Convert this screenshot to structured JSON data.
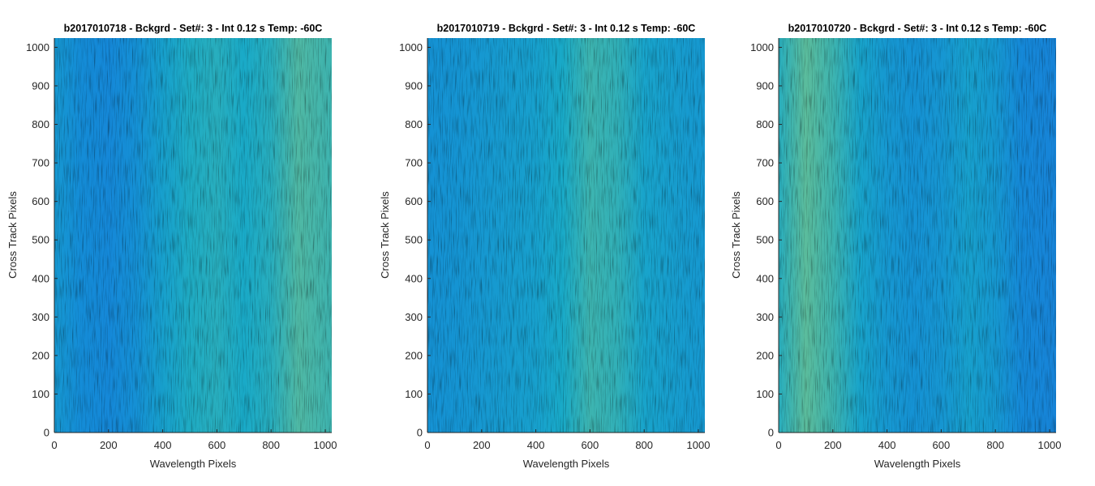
{
  "chart_data": [
    {
      "type": "heatmap",
      "title": "b2017010718 - Bckgrd - Set#: 3 - Int 0.12 s Temp: -60C",
      "xlabel": "Wavelength Pixels",
      "ylabel": "Cross Track Pixels",
      "xlim": [
        0,
        1024
      ],
      "ylim": [
        0,
        1024
      ],
      "xticks": [
        0,
        200,
        400,
        600,
        800,
        1000
      ],
      "yticks": [
        0,
        100,
        200,
        300,
        400,
        500,
        600,
        700,
        800,
        900,
        1000
      ],
      "colormap": "parula",
      "column_intensity_profile": {
        "x": [
          0,
          100,
          200,
          300,
          400,
          500,
          600,
          700,
          800,
          900,
          1024
        ],
        "level": [
          0.35,
          0.25,
          0.22,
          0.28,
          0.42,
          0.52,
          0.55,
          0.5,
          0.55,
          0.68,
          0.62
        ]
      }
    },
    {
      "type": "heatmap",
      "title": "b2017010719 - Bckgrd - Set#: 3 - Int 0.12 s Temp: -60C",
      "xlabel": "Wavelength Pixels",
      "ylabel": "Cross Track Pixels",
      "xlim": [
        0,
        1024
      ],
      "ylim": [
        0,
        1024
      ],
      "xticks": [
        0,
        200,
        400,
        600,
        800,
        1000
      ],
      "yticks": [
        0,
        100,
        200,
        300,
        400,
        500,
        600,
        700,
        800,
        900,
        1000
      ],
      "colormap": "parula",
      "column_intensity_profile": {
        "x": [
          0,
          100,
          200,
          300,
          400,
          500,
          600,
          700,
          800,
          900,
          1024
        ],
        "level": [
          0.3,
          0.32,
          0.35,
          0.38,
          0.42,
          0.5,
          0.62,
          0.58,
          0.45,
          0.4,
          0.35
        ]
      }
    },
    {
      "type": "heatmap",
      "title": "b2017010720 - Bckgrd - Set#: 3 - Int 0.12 s Temp: -60C",
      "xlabel": "Wavelength Pixels",
      "ylabel": "Cross Track Pixels",
      "xlim": [
        0,
        1024
      ],
      "ylim": [
        0,
        1024
      ],
      "xticks": [
        0,
        200,
        400,
        600,
        800,
        1000
      ],
      "yticks": [
        0,
        100,
        200,
        300,
        400,
        500,
        600,
        700,
        800,
        900,
        1000
      ],
      "colormap": "parula",
      "column_intensity_profile": {
        "x": [
          0,
          100,
          200,
          300,
          400,
          500,
          600,
          700,
          800,
          900,
          1024
        ],
        "level": [
          0.55,
          0.72,
          0.62,
          0.45,
          0.35,
          0.3,
          0.33,
          0.42,
          0.35,
          0.22,
          0.18
        ]
      }
    }
  ]
}
